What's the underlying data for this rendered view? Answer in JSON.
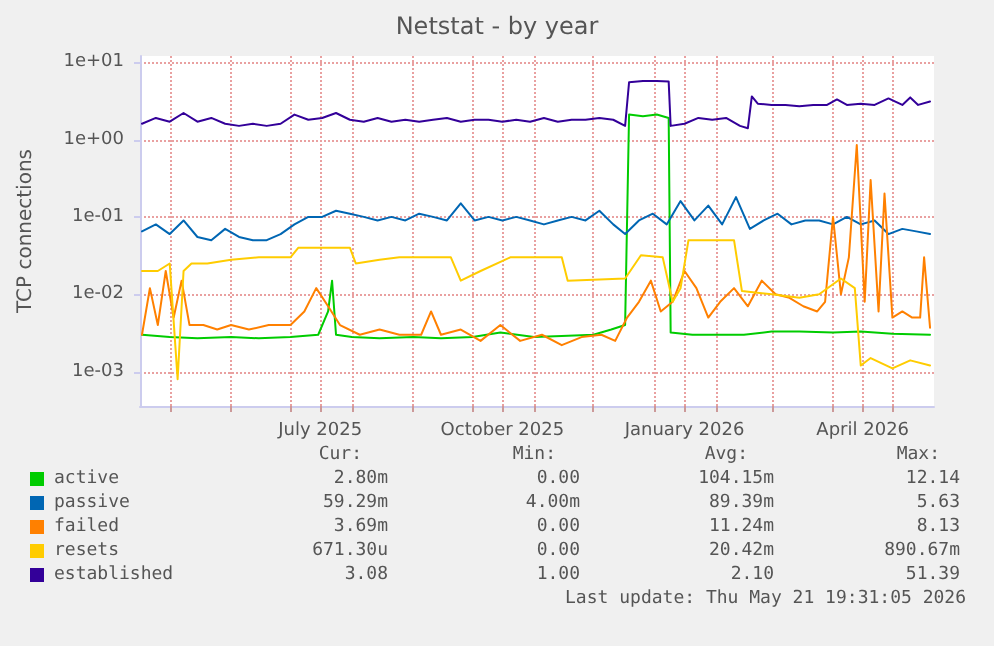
{
  "chart_data": {
    "type": "line",
    "title": "Netstat - by year",
    "ylabel": "TCP connections",
    "log": "y",
    "grid": true,
    "legend": "bottom left",
    "marker": "none",
    "line_style": "solid",
    "xlim": [
      "2025-04-16",
      "2026-05-22"
    ],
    "xticks": [
      {
        "value": "2025-05-01",
        "label": null
      },
      {
        "value": "2025-06-01",
        "label": null
      },
      {
        "value": "2025-07-01",
        "label": null
      },
      {
        "value": "2025-07-16",
        "label": "July 2025"
      },
      {
        "value": "2025-08-01",
        "label": null
      },
      {
        "value": "2025-09-01",
        "label": null
      },
      {
        "value": "2025-10-01",
        "label": null
      },
      {
        "value": "2025-10-16",
        "label": "October 2025"
      },
      {
        "value": "2025-11-01",
        "label": null
      },
      {
        "value": "2025-12-01",
        "label": null
      },
      {
        "value": "2026-01-01",
        "label": null
      },
      {
        "value": "2026-01-16",
        "label": "January 2026"
      },
      {
        "value": "2026-02-01",
        "label": null
      },
      {
        "value": "2026-03-01",
        "label": null
      },
      {
        "value": "2026-04-01",
        "label": null
      },
      {
        "value": "2026-04-16",
        "label": "April 2026"
      },
      {
        "value": "2026-05-01",
        "label": null
      }
    ],
    "ylim": [
      0.00036,
      12
    ],
    "yticks": [
      {
        "value": 0.001,
        "label": "1e-03"
      },
      {
        "value": 0.01,
        "label": "1e-02"
      },
      {
        "value": 0.1,
        "label": "1e-01"
      },
      {
        "value": 1,
        "label": "1e+00"
      },
      {
        "value": 10,
        "label": "1e+01"
      }
    ],
    "series": [
      {
        "name": "active",
        "color": "#00cc00",
        "x": [
          "2025-04-17",
          "2025-05-01",
          "2025-05-15",
          "2025-06-01",
          "2025-06-15",
          "2025-07-01",
          "2025-07-15",
          "2025-07-20",
          "2025-07-22",
          "2025-07-24",
          "2025-08-01",
          "2025-08-15",
          "2025-09-01",
          "2025-09-15",
          "2025-10-01",
          "2025-10-15",
          "2025-11-01",
          "2025-11-15",
          "2025-12-01",
          "2025-12-10",
          "2025-12-17",
          "2025-12-19",
          "2025-12-26",
          "2026-01-02",
          "2026-01-08",
          "2026-01-09",
          "2026-01-20",
          "2026-02-01",
          "2026-02-15",
          "2026-03-01",
          "2026-03-15",
          "2026-04-01",
          "2026-04-15",
          "2026-05-01",
          "2026-05-20"
        ],
        "values": [
          0.003,
          0.0028,
          0.0027,
          0.0028,
          0.0027,
          0.0028,
          0.003,
          0.006,
          0.015,
          0.003,
          0.0028,
          0.0027,
          0.0028,
          0.0027,
          0.0028,
          0.0032,
          0.0028,
          0.0029,
          0.003,
          0.0035,
          0.004,
          2.1,
          2.0,
          2.1,
          1.9,
          0.0032,
          0.003,
          0.003,
          0.003,
          0.0033,
          0.0033,
          0.0032,
          0.0033,
          0.0031,
          0.003
        ]
      },
      {
        "name": "passive",
        "color": "#0066b3",
        "x": [
          "2025-04-17",
          "2025-04-24",
          "2025-05-01",
          "2025-05-08",
          "2025-05-15",
          "2025-05-22",
          "2025-05-29",
          "2025-06-05",
          "2025-06-12",
          "2025-06-19",
          "2025-06-26",
          "2025-07-03",
          "2025-07-10",
          "2025-07-17",
          "2025-07-24",
          "2025-07-31",
          "2025-08-07",
          "2025-08-14",
          "2025-08-21",
          "2025-08-28",
          "2025-09-04",
          "2025-09-11",
          "2025-09-18",
          "2025-09-25",
          "2025-10-02",
          "2025-10-09",
          "2025-10-16",
          "2025-10-23",
          "2025-10-30",
          "2025-11-06",
          "2025-11-13",
          "2025-11-20",
          "2025-11-27",
          "2025-12-04",
          "2025-12-11",
          "2025-12-17",
          "2025-12-24",
          "2025-12-31",
          "2026-01-07",
          "2026-01-14",
          "2026-01-21",
          "2026-01-28",
          "2026-02-04",
          "2026-02-11",
          "2026-02-18",
          "2026-02-25",
          "2026-03-04",
          "2026-03-11",
          "2026-03-18",
          "2026-03-25",
          "2026-04-01",
          "2026-04-08",
          "2026-04-15",
          "2026-04-22",
          "2026-04-29",
          "2026-05-06",
          "2026-05-13",
          "2026-05-20"
        ],
        "values": [
          0.065,
          0.08,
          0.06,
          0.09,
          0.055,
          0.05,
          0.07,
          0.055,
          0.05,
          0.05,
          0.06,
          0.08,
          0.1,
          0.1,
          0.12,
          0.11,
          0.1,
          0.09,
          0.1,
          0.09,
          0.11,
          0.1,
          0.09,
          0.15,
          0.09,
          0.1,
          0.09,
          0.1,
          0.09,
          0.08,
          0.09,
          0.1,
          0.09,
          0.12,
          0.08,
          0.06,
          0.09,
          0.11,
          0.08,
          0.16,
          0.09,
          0.14,
          0.08,
          0.18,
          0.07,
          0.09,
          0.11,
          0.08,
          0.09,
          0.09,
          0.08,
          0.1,
          0.08,
          0.09,
          0.06,
          0.07,
          0.065,
          0.06
        ]
      },
      {
        "name": "failed",
        "color": "#ff8000",
        "x": [
          "2025-04-17",
          "2025-04-21",
          "2025-04-25",
          "2025-04-29",
          "2025-05-03",
          "2025-05-07",
          "2025-05-11",
          "2025-05-18",
          "2025-05-25",
          "2025-06-01",
          "2025-06-10",
          "2025-06-20",
          "2025-07-01",
          "2025-07-08",
          "2025-07-14",
          "2025-07-20",
          "2025-07-26",
          "2025-08-05",
          "2025-08-15",
          "2025-08-25",
          "2025-09-05",
          "2025-09-10",
          "2025-09-15",
          "2025-09-25",
          "2025-10-05",
          "2025-10-15",
          "2025-10-25",
          "2025-11-05",
          "2025-11-15",
          "2025-11-25",
          "2025-12-05",
          "2025-12-12",
          "2025-12-18",
          "2025-12-24",
          "2025-12-30",
          "2026-01-04",
          "2026-01-10",
          "2026-01-16",
          "2026-01-22",
          "2026-01-28",
          "2026-02-03",
          "2026-02-10",
          "2026-02-17",
          "2026-02-24",
          "2026-03-03",
          "2026-03-10",
          "2026-03-17",
          "2026-03-24",
          "2026-03-28",
          "2026-04-01",
          "2026-04-05",
          "2026-04-09",
          "2026-04-13",
          "2026-04-17",
          "2026-04-20",
          "2026-04-24",
          "2026-04-27",
          "2026-05-01",
          "2026-05-06",
          "2026-05-11",
          "2026-05-15",
          "2026-05-17",
          "2026-05-20"
        ],
        "values": [
          0.003,
          0.012,
          0.004,
          0.02,
          0.005,
          0.015,
          0.004,
          0.004,
          0.0035,
          0.004,
          0.0035,
          0.004,
          0.004,
          0.006,
          0.012,
          0.007,
          0.004,
          0.003,
          0.0035,
          0.003,
          0.003,
          0.006,
          0.003,
          0.0035,
          0.0025,
          0.004,
          0.0025,
          0.003,
          0.0022,
          0.0028,
          0.003,
          0.0025,
          0.005,
          0.008,
          0.015,
          0.006,
          0.008,
          0.02,
          0.012,
          0.005,
          0.008,
          0.012,
          0.007,
          0.015,
          0.01,
          0.009,
          0.007,
          0.006,
          0.008,
          0.1,
          0.01,
          0.03,
          0.85,
          0.008,
          0.3,
          0.006,
          0.2,
          0.005,
          0.006,
          0.005,
          0.005,
          0.03,
          0.0037
        ]
      },
      {
        "name": "resets",
        "color": "#ffcc00",
        "x": [
          "2025-04-17",
          "2025-04-25",
          "2025-05-01",
          "2025-05-05",
          "2025-05-08",
          "2025-05-12",
          "2025-05-20",
          "2025-06-01",
          "2025-06-15",
          "2025-07-01",
          "2025-07-05",
          "2025-07-31",
          "2025-08-03",
          "2025-08-15",
          "2025-08-25",
          "2025-09-20",
          "2025-09-25",
          "2025-10-05",
          "2025-10-20",
          "2025-11-15",
          "2025-11-18",
          "2025-12-17",
          "2025-12-25",
          "2026-01-05",
          "2026-01-10",
          "2026-01-14",
          "2026-01-18",
          "2026-02-10",
          "2026-02-14",
          "2026-03-01",
          "2026-03-15",
          "2026-03-25",
          "2026-04-05",
          "2026-04-12",
          "2026-04-15",
          "2026-04-20",
          "2026-05-01",
          "2026-05-10",
          "2026-05-20"
        ],
        "values": [
          0.02,
          0.02,
          0.025,
          0.0008,
          0.02,
          0.025,
          0.025,
          0.028,
          0.03,
          0.03,
          0.04,
          0.04,
          0.025,
          0.028,
          0.03,
          0.03,
          0.015,
          0.02,
          0.03,
          0.03,
          0.015,
          0.016,
          0.032,
          0.03,
          0.008,
          0.012,
          0.05,
          0.05,
          0.011,
          0.01,
          0.009,
          0.01,
          0.016,
          0.012,
          0.0012,
          0.0015,
          0.0011,
          0.0014,
          0.0012
        ]
      },
      {
        "name": "established",
        "color": "#330099",
        "x": [
          "2025-04-17",
          "2025-04-24",
          "2025-05-01",
          "2025-05-08",
          "2025-05-15",
          "2025-05-22",
          "2025-05-29",
          "2025-06-05",
          "2025-06-12",
          "2025-06-19",
          "2025-06-26",
          "2025-07-03",
          "2025-07-10",
          "2025-07-17",
          "2025-07-24",
          "2025-07-31",
          "2025-08-07",
          "2025-08-14",
          "2025-08-21",
          "2025-08-28",
          "2025-09-04",
          "2025-09-11",
          "2025-09-18",
          "2025-09-25",
          "2025-10-02",
          "2025-10-09",
          "2025-10-16",
          "2025-10-23",
          "2025-10-30",
          "2025-11-06",
          "2025-11-13",
          "2025-11-20",
          "2025-11-27",
          "2025-12-04",
          "2025-12-11",
          "2025-12-17",
          "2025-12-19",
          "2025-12-26",
          "2026-01-02",
          "2026-01-08",
          "2026-01-09",
          "2026-01-16",
          "2026-01-23",
          "2026-01-30",
          "2026-02-06",
          "2026-02-13",
          "2026-02-17",
          "2026-02-19",
          "2026-02-22",
          "2026-03-01",
          "2026-03-08",
          "2026-03-15",
          "2026-03-22",
          "2026-03-29",
          "2026-04-03",
          "2026-04-08",
          "2026-04-15",
          "2026-04-22",
          "2026-04-29",
          "2026-05-06",
          "2026-05-10",
          "2026-05-14",
          "2026-05-20"
        ],
        "values": [
          1.6,
          1.9,
          1.7,
          2.2,
          1.7,
          1.9,
          1.6,
          1.5,
          1.6,
          1.5,
          1.6,
          2.1,
          1.8,
          1.9,
          2.2,
          1.8,
          1.7,
          1.9,
          1.7,
          1.8,
          1.7,
          1.8,
          1.9,
          1.7,
          1.8,
          1.8,
          1.7,
          1.8,
          1.7,
          1.9,
          1.7,
          1.8,
          1.8,
          1.9,
          1.8,
          1.5,
          5.5,
          5.7,
          5.7,
          5.6,
          1.5,
          1.6,
          1.9,
          1.8,
          1.9,
          1.5,
          1.4,
          3.6,
          2.9,
          2.8,
          2.8,
          2.7,
          2.8,
          2.8,
          3.3,
          2.8,
          2.9,
          2.8,
          3.4,
          2.8,
          3.5,
          2.8,
          3.1
        ]
      }
    ],
    "annotations": [
      "Cur:",
      "Min:",
      "Avg:",
      "Max:",
      "2.80m",
      "0.00",
      "104.15m",
      "12.14",
      "59.29m",
      "4.00m",
      "89.39m",
      "5.63",
      "3.69m",
      "0.00",
      "11.24m",
      "8.13",
      "671.30u",
      "0.00",
      "20.42m",
      "890.67m",
      "3.08",
      "1.00",
      "2.10",
      "51.39",
      "Last update: Thu May 21 19:31:05 2026"
    ]
  }
}
